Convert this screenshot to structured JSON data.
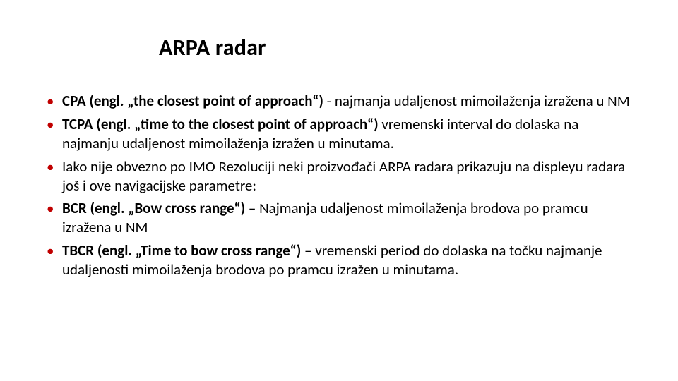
{
  "colors": {
    "background": "#ffffff",
    "text": "#000000",
    "bullet": "#c00000"
  },
  "typography": {
    "title_fontsize": 32,
    "title_weight": 700,
    "body_fontsize": 21,
    "body_line_height": 1.28,
    "font_family": "Calibri"
  },
  "title": "ARPA radar",
  "bullets": [
    {
      "bold_lead": "CPA (engl. „the closest point of approach“)",
      "rest": " -  najmanja udaljenost mimoilaženja izražena u NM"
    },
    {
      "bold_lead": "TCPA (engl. „time to the closest point of approach“) ",
      "rest": "vremenski interval do dolaska na najmanju udaljenost mimoilaženja izražen u minutama."
    },
    {
      "bold_lead": "",
      "rest": " Iako nije obvezno po IMO Rezoluciji neki proizvođači ARPA radara prikazuju na displeyu radara još i ove navigacijske parametre:"
    },
    {
      "bold_lead": " BCR (engl. „Bow cross range“) ",
      "rest": "– Najmanja udaljenost mimoilaženja brodova po pramcu izražena u NM"
    },
    {
      "bold_lead": "TBCR (engl. „Time to bow cross range“) ",
      "rest": "– vremenski period do dolaska na točku najmanje udaljenosti mimoilaženja brodova po pramcu izražen u minutama."
    }
  ]
}
